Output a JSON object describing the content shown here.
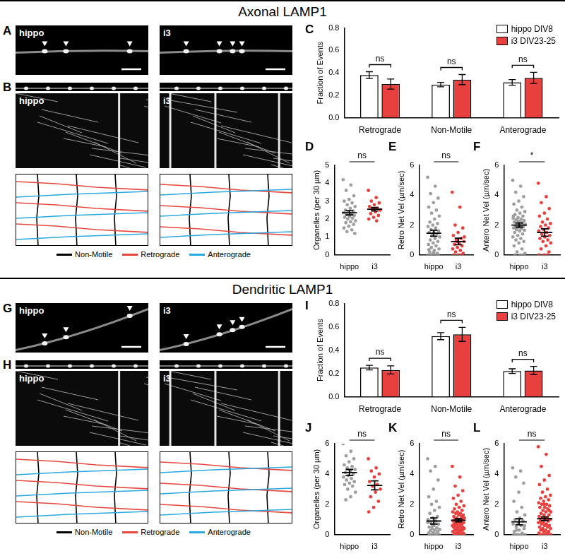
{
  "sections": [
    {
      "title": "Axonal LAMP1",
      "image_panel": {
        "letter": "A",
        "labels": [
          "hippo",
          "i3"
        ]
      },
      "kymograph_panel": {
        "letter": "B",
        "labels": [
          "hippo",
          "i3"
        ],
        "legend": [
          {
            "name": "Non-Motile",
            "color": "#000000"
          },
          {
            "name": "Retrograde",
            "color": "#e8473f"
          },
          {
            "name": "Anterograde",
            "color": "#2aa8e0"
          }
        ]
      }
    },
    {
      "title": "Dendritic LAMP1",
      "image_panel": {
        "letter": "G",
        "labels": [
          "hippo",
          "i3"
        ]
      },
      "kymograph_panel": {
        "letter": "H",
        "labels": [
          "hippo",
          "i3"
        ],
        "legend": [
          {
            "name": "Non-Motile",
            "color": "#000000"
          },
          {
            "name": "Retrograde",
            "color": "#e8473f"
          },
          {
            "name": "Anterograde",
            "color": "#2aa8e0"
          }
        ]
      }
    }
  ],
  "chart_data": [
    {
      "letter": "C",
      "type": "bar",
      "categories": [
        "Retrograde",
        "Non-Motile",
        "Anterograde"
      ],
      "y_label": "Fraction of Events",
      "ylim": [
        0,
        0.8
      ],
      "yticks": [
        {
          "value": 0,
          "label": "0.0"
        },
        0.2,
        0.4,
        0.6,
        0.8
      ],
      "legend": "top-right",
      "series": [
        {
          "name": "hippo DIV8",
          "color": "#ffffff",
          "values": [
            0.38,
            0.295,
            0.315
          ],
          "errors": [
            0.03,
            0.02,
            0.025
          ]
        },
        {
          "name": "i3 DIV23-25",
          "color": "#e8403e",
          "values": [
            0.3,
            0.34,
            0.355
          ],
          "errors": [
            0.045,
            0.045,
            0.05
          ]
        }
      ],
      "annotations": [
        "ns",
        "ns",
        "ns"
      ]
    },
    {
      "letter": "D",
      "type": "dot",
      "categories": [
        "hippo",
        "i3"
      ],
      "colors": [
        "#9e9e9e",
        "#e8403e"
      ],
      "values": [
        [
          4.2,
          3.9,
          3.6,
          3.3,
          3.1,
          3.0,
          2.9,
          2.8,
          2.7,
          2.6,
          2.5,
          2.45,
          2.4,
          2.35,
          2.3,
          2.25,
          2.2,
          2.15,
          2.1,
          2.05,
          2.0,
          1.9,
          1.85,
          1.8,
          1.7,
          1.6,
          1.5,
          1.4,
          1.3,
          1.2
        ],
        [
          3.6,
          3.2,
          3.0,
          2.9,
          2.8,
          2.7,
          2.6,
          2.55,
          2.5,
          2.4,
          2.3,
          2.2,
          2.1,
          2.0,
          1.9
        ]
      ],
      "mean": [
        2.35,
        2.55
      ],
      "sem": [
        0.12,
        0.1
      ],
      "y_label": "Organelles (per 30 µm)",
      "ylim": [
        0,
        5
      ],
      "yticks": [
        0,
        1,
        2,
        3,
        4,
        5
      ],
      "annotation": "ns"
    },
    {
      "letter": "E",
      "type": "dot",
      "categories": [
        "hippo",
        "i3"
      ],
      "colors": [
        "#9e9e9e",
        "#e8403e"
      ],
      "values": [
        [
          5.2,
          4.6,
          4.1,
          3.8,
          3.5,
          3.2,
          3.0,
          2.8,
          2.6,
          2.4,
          2.2,
          2.1,
          2.0,
          1.9,
          1.8,
          1.7,
          1.6,
          1.5,
          1.5,
          1.4,
          1.3,
          1.2,
          1.1,
          1.0,
          0.9,
          0.8,
          0.7,
          0.6,
          0.5,
          0.4,
          0.3,
          0.2,
          0.1,
          0.05,
          0,
          0,
          0,
          0,
          0.15,
          0.35
        ],
        [
          4.2,
          3.2,
          2.0,
          1.8,
          1.5,
          1.3,
          1.1,
          1.0,
          0.9,
          0.8,
          0.7,
          0.6,
          0.5,
          0.4,
          0.3,
          0.2,
          0.1,
          0,
          0,
          0,
          0.9,
          1.2
        ]
      ],
      "mean": [
        1.45,
        0.9
      ],
      "sem": [
        0.2,
        0.22
      ],
      "y_label": "Retro Net Vel (µm/sec)",
      "ylim": [
        0,
        6
      ],
      "yticks": [
        0,
        2,
        4,
        6
      ],
      "annotation": "ns"
    },
    {
      "letter": "F",
      "type": "dot",
      "categories": [
        "hippo",
        "i3"
      ],
      "colors": [
        "#9e9e9e",
        "#e8403e"
      ],
      "values": [
        [
          5.0,
          4.6,
          4.2,
          3.9,
          3.6,
          3.4,
          3.2,
          3.0,
          2.9,
          2.8,
          2.7,
          2.6,
          2.5,
          2.45,
          2.4,
          2.35,
          2.3,
          2.25,
          2.2,
          2.15,
          2.1,
          2.05,
          2.0,
          1.95,
          1.9,
          1.85,
          1.8,
          1.75,
          1.7,
          1.65,
          1.6,
          1.5,
          1.4,
          1.3,
          1.2,
          1.1,
          1.0,
          0.9,
          0.8,
          0.6,
          0.4,
          0.2,
          0.1,
          0,
          0,
          0,
          2.2,
          2.6,
          1.9,
          1.7
        ],
        [
          4.8,
          3.9,
          3.5,
          3.1,
          2.8,
          2.6,
          2.4,
          2.2,
          2.1,
          2.0,
          1.9,
          1.8,
          1.7,
          1.6,
          1.5,
          1.4,
          1.3,
          1.2,
          1.1,
          1.0,
          0.9,
          0.8,
          0.6,
          0.4,
          0.2,
          0,
          0,
          0
        ]
      ],
      "mean": [
        2.0,
        1.5
      ],
      "sem": [
        0.14,
        0.25
      ],
      "y_label": "Antero Net Vel (µm/sec)",
      "ylim": [
        0,
        6
      ],
      "yticks": [
        0,
        2,
        4,
        6
      ],
      "annotation": "*"
    },
    {
      "letter": "I",
      "type": "bar",
      "categories": [
        "Retrograde",
        "Non-Motile",
        "Anterograde"
      ],
      "y_label": "Fraction of Events",
      "ylim": [
        0,
        0.8
      ],
      "yticks": [
        {
          "value": 0,
          "label": "0.0"
        },
        0.2,
        0.4,
        0.6,
        0.8
      ],
      "legend": "top-right",
      "series": [
        {
          "name": "hippo DIV8",
          "color": "#ffffff",
          "values": [
            0.25,
            0.52,
            0.22
          ],
          "errors": [
            0.02,
            0.03,
            0.02
          ]
        },
        {
          "name": "i3 DIV23-25",
          "color": "#e8403e",
          "values": [
            0.23,
            0.535,
            0.225
          ],
          "errors": [
            0.035,
            0.06,
            0.035
          ]
        }
      ],
      "annotations": [
        "ns",
        "ns",
        "ns"
      ]
    },
    {
      "letter": "J",
      "type": "dot",
      "categories": [
        "hippo",
        "i3"
      ],
      "colors": [
        "#9e9e9e",
        "#e8403e"
      ],
      "values": [
        [
          6.0,
          5.5,
          5.2,
          5.0,
          4.8,
          4.6,
          4.5,
          4.4,
          4.3,
          4.2,
          4.1,
          4.0,
          3.9,
          3.8,
          3.7,
          3.6,
          3.5,
          3.4,
          3.3,
          3.2,
          3.0,
          2.8,
          2.5,
          2.3
        ],
        [
          5.0,
          4.4,
          4.2,
          4.0,
          3.8,
          3.5,
          3.3,
          3.2,
          3.0,
          2.8,
          2.5,
          2.2,
          1.8,
          1.5
        ]
      ],
      "mean": [
        4.1,
        3.25
      ],
      "sem": [
        0.2,
        0.3
      ],
      "y_label": "Organelles (per 30 µm)",
      "ylim": [
        0,
        6
      ],
      "yticks": [
        0,
        2,
        4,
        6
      ],
      "annotation": "ns"
    },
    {
      "letter": "K",
      "type": "dot",
      "categories": [
        "hippo",
        "i3"
      ],
      "colors": [
        "#9e9e9e",
        "#e8403e"
      ],
      "values": [
        [
          5.0,
          4.5,
          4.2,
          3.6,
          3.0,
          2.5,
          2.2,
          2.0,
          1.8,
          1.6,
          1.4,
          1.2,
          1.1,
          1.0,
          0.9,
          0.8,
          0.7,
          0.6,
          0.5,
          0.45,
          0.4,
          0.35,
          0.3,
          0.25,
          0.2,
          0.15,
          0.1,
          0.05,
          0,
          0,
          0,
          0,
          0,
          0.6,
          0.8
        ],
        [
          4.5,
          3.8,
          3.2,
          2.9,
          2.6,
          2.4,
          2.2,
          2.0,
          1.9,
          1.8,
          1.7,
          1.6,
          1.5,
          1.5,
          1.4,
          1.4,
          1.3,
          1.3,
          1.2,
          1.2,
          1.1,
          1.1,
          1.0,
          1.0,
          1.0,
          0.9,
          0.9,
          0.9,
          0.8,
          0.8,
          0.8,
          0.7,
          0.7,
          0.7,
          0.6,
          0.6,
          0.6,
          0.5,
          0.5,
          0.5,
          0.4,
          0.4,
          0.4,
          0.3,
          0.3,
          0.3,
          0.2,
          0.2,
          0.2,
          0.1,
          0.1,
          0.1,
          0,
          0,
          0,
          0,
          0,
          0,
          1.2,
          0.9
        ]
      ],
      "mean": [
        0.9,
        0.95
      ],
      "sem": [
        0.2,
        0.1
      ],
      "y_label": "Retro Net Vel (µm/sec)",
      "ylim": [
        0,
        6
      ],
      "yticks": [
        0,
        2,
        4,
        6
      ],
      "annotation": "ns"
    },
    {
      "letter": "L",
      "type": "dot",
      "categories": [
        "hippo",
        "i3"
      ],
      "colors": [
        "#9e9e9e",
        "#e8403e"
      ],
      "values": [
        [
          4.4,
          4.2,
          3.8,
          3.4,
          2.8,
          2.2,
          1.8,
          1.5,
          1.3,
          1.1,
          1.0,
          0.9,
          0.8,
          0.7,
          0.6,
          0.5,
          0.4,
          0.3,
          0.2,
          0.1,
          0,
          0,
          0,
          0,
          0,
          0,
          0,
          0,
          0.3,
          0.6
        ],
        [
          5.8,
          5.3,
          4.5,
          3.9,
          3.6,
          3.3,
          3.0,
          2.8,
          2.6,
          2.5,
          2.4,
          2.3,
          2.2,
          2.1,
          2.0,
          2.0,
          1.9,
          1.8,
          1.8,
          1.7,
          1.6,
          1.5,
          1.5,
          1.4,
          1.3,
          1.3,
          1.2,
          1.1,
          1.1,
          1.0,
          1.0,
          0.9,
          0.9,
          0.8,
          0.8,
          0.7,
          0.7,
          0.6,
          0.6,
          0.5,
          0.5,
          0.4,
          0.4,
          0.3,
          0.3,
          0.2,
          0.2,
          0.1,
          0.1,
          0,
          0,
          0,
          0,
          0,
          0,
          0,
          0,
          0,
          1.6,
          2.0
        ]
      ],
      "mean": [
        0.85,
        1.05
      ],
      "sem": [
        0.2,
        0.12
      ],
      "y_label": "Antero Net Vel (µm/sec)",
      "ylim": [
        0,
        6
      ],
      "yticks": [
        0,
        2,
        4,
        6
      ],
      "annotation": "ns"
    }
  ]
}
